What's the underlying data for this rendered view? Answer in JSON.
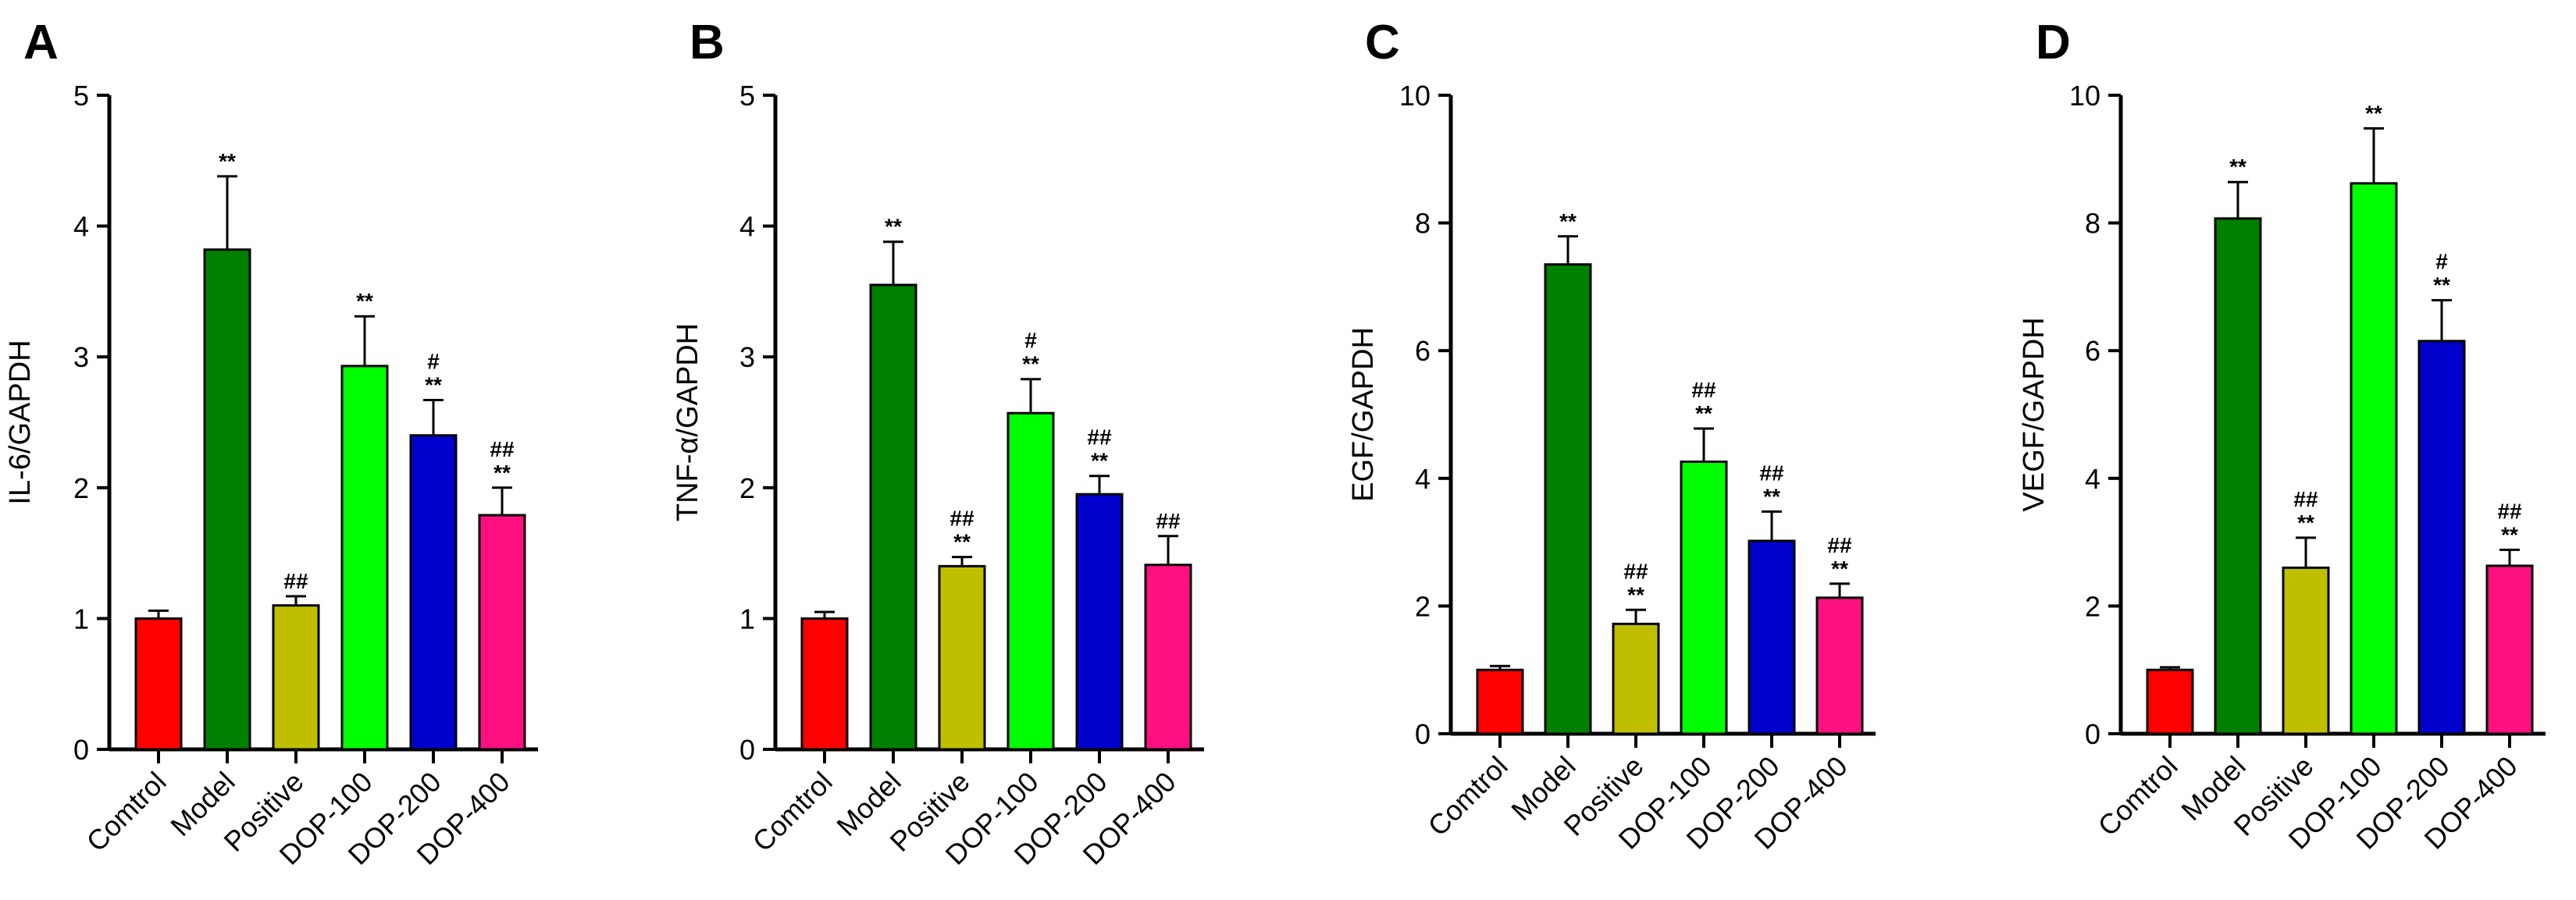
{
  "chart_data": [
    {
      "type": "bar",
      "panel": "A",
      "ylabel": "IL-6/GAPDH",
      "ylim": [
        0,
        5
      ],
      "yticks": [
        0,
        1,
        2,
        3,
        4,
        5
      ],
      "categories": [
        "Comtrol",
        "Model",
        "Positive",
        "DOP-100",
        "DOP-200",
        "DOP-400"
      ],
      "values": [
        1.0,
        3.82,
        1.1,
        2.93,
        2.4,
        1.79
      ],
      "errors": [
        0.06,
        0.56,
        0.07,
        0.38,
        0.27,
        0.21
      ],
      "annotations": [
        [],
        [
          "**"
        ],
        [
          "##"
        ],
        [
          "**"
        ],
        [
          "#",
          "**"
        ],
        [
          "##",
          "**"
        ]
      ],
      "colors": [
        "#ff0000",
        "#008000",
        "#bfbf00",
        "#00ff00",
        "#0000cc",
        "#ff1080"
      ]
    },
    {
      "type": "bar",
      "panel": "B",
      "ylabel": "TNF-α/GAPDH",
      "ylim": [
        0,
        5
      ],
      "yticks": [
        0,
        1,
        2,
        3,
        4,
        5
      ],
      "categories": [
        "Comtrol",
        "Model",
        "Positive",
        "DOP-100",
        "DOP-200",
        "DOP-400"
      ],
      "values": [
        1.0,
        3.55,
        1.4,
        2.57,
        1.95,
        1.41
      ],
      "errors": [
        0.05,
        0.33,
        0.07,
        0.26,
        0.14,
        0.22
      ],
      "annotations": [
        [],
        [
          "**"
        ],
        [
          "##",
          "**"
        ],
        [
          "#",
          "**"
        ],
        [
          "##",
          "**"
        ],
        [
          "##"
        ]
      ],
      "colors": [
        "#ff0000",
        "#008000",
        "#bfbf00",
        "#00ff00",
        "#0000cc",
        "#ff1080"
      ]
    },
    {
      "type": "bar",
      "panel": "C",
      "ylabel": "EGF/GAPDH",
      "ylim": [
        0,
        10
      ],
      "yticks": [
        0,
        2,
        4,
        6,
        8,
        10
      ],
      "categories": [
        "Comtrol",
        "Model",
        "Positive",
        "DOP-100",
        "DOP-200",
        "DOP-400"
      ],
      "values": [
        1.0,
        7.35,
        1.72,
        4.26,
        3.02,
        2.13
      ],
      "errors": [
        0.06,
        0.44,
        0.22,
        0.52,
        0.46,
        0.22
      ],
      "annotations": [
        [],
        [
          "**"
        ],
        [
          "##",
          "**"
        ],
        [
          "##",
          "**"
        ],
        [
          "##",
          "**"
        ],
        [
          "##",
          "**"
        ]
      ],
      "colors": [
        "#ff0000",
        "#008000",
        "#bfbf00",
        "#00ff00",
        "#0000cc",
        "#ff1080"
      ]
    },
    {
      "type": "bar",
      "panel": "D",
      "ylabel": "VEGF/GAPDH",
      "ylim": [
        0,
        10
      ],
      "yticks": [
        0,
        2,
        4,
        6,
        8,
        10
      ],
      "categories": [
        "Comtrol",
        "Model",
        "Positive",
        "DOP-100",
        "DOP-200",
        "DOP-400"
      ],
      "values": [
        1.0,
        8.07,
        2.6,
        8.62,
        6.15,
        2.63
      ],
      "errors": [
        0.04,
        0.57,
        0.47,
        0.86,
        0.64,
        0.25
      ],
      "annotations": [
        [],
        [
          "**"
        ],
        [
          "##",
          "**"
        ],
        [
          "**"
        ],
        [
          "#",
          "**"
        ],
        [
          "##",
          "**"
        ]
      ],
      "colors": [
        "#ff0000",
        "#008000",
        "#bfbf00",
        "#00ff00",
        "#0000cc",
        "#ff1080"
      ]
    }
  ]
}
